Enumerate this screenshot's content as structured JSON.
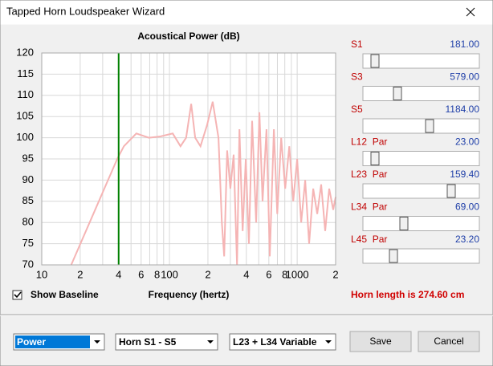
{
  "window": {
    "title": "Tapped Horn Loudspeaker Wizard"
  },
  "chart_data": {
    "type": "line",
    "title": "Acoustical Power (dB)",
    "x_label": "Frequency (hertz)",
    "x": [
      17,
      39,
      44,
      55,
      69,
      85,
      106,
      122,
      135,
      148,
      159,
      175,
      197,
      218,
      242,
      257,
      268,
      283,
      300,
      318,
      338,
      353,
      374,
      396,
      419,
      444,
      477,
      506,
      536,
      575,
      610,
      657,
      698,
      749,
      806,
      867,
      931,
      1000,
      1075,
      1156,
      1240,
      1335,
      1435,
      1542,
      1658,
      1780,
      1915,
      2000
    ],
    "series": [
      {
        "color": "#f5b4b4",
        "values": [
          70,
          95,
          98,
          101,
          100,
          100.3,
          101,
          98,
          100,
          108,
          100,
          98,
          103,
          108.5,
          100,
          80,
          72,
          97,
          88,
          96,
          70,
          102,
          78,
          95,
          75,
          104,
          80,
          106,
          85,
          102,
          72,
          102,
          82,
          100,
          88,
          98,
          85,
          95,
          80,
          90,
          75,
          88,
          82,
          89,
          78,
          88,
          83,
          86
        ]
      }
    ],
    "xscale": "log",
    "xlim": [
      10,
      2000
    ],
    "xticks": [
      {
        "value": 10,
        "label": "10"
      },
      {
        "value": 20,
        "label": "2"
      },
      {
        "value": 30,
        "label": null
      },
      {
        "value": 40,
        "label": "4"
      },
      {
        "value": 50,
        "label": null
      },
      {
        "value": 60,
        "label": "6"
      },
      {
        "value": 70,
        "label": null
      },
      {
        "value": 80,
        "label": "8"
      },
      {
        "value": 90,
        "label": null
      },
      {
        "value": 100,
        "label": "100"
      },
      {
        "value": 200,
        "label": "2"
      },
      {
        "value": 300,
        "label": null
      },
      {
        "value": 400,
        "label": "4"
      },
      {
        "value": 500,
        "label": null
      },
      {
        "value": 600,
        "label": "6"
      },
      {
        "value": 700,
        "label": null
      },
      {
        "value": 800,
        "label": "8"
      },
      {
        "value": 900,
        "label": null
      },
      {
        "value": 1000,
        "label": "1000"
      },
      {
        "value": 2000,
        "label": "2"
      }
    ],
    "ylim": [
      70,
      120
    ],
    "yticks": [
      70,
      75,
      80,
      85,
      90,
      95,
      100,
      105,
      110,
      115,
      120
    ],
    "grid": true,
    "vline": {
      "x": 40,
      "color": "#008000"
    }
  },
  "sliders": [
    {
      "label": "S1",
      "value": "181.00"
    },
    {
      "label": "S3",
      "value": "579.00"
    },
    {
      "label": "S5",
      "value": "1184.00"
    },
    {
      "label": "L12  Par",
      "value": "23.00"
    },
    {
      "label": "L23  Par",
      "value": "159.40"
    },
    {
      "label": "L34  Par",
      "value": "69.00"
    },
    {
      "label": "L45  Par",
      "value": "23.20"
    }
  ],
  "checkbox": {
    "label": "Show Baseline"
  },
  "status": "Horn length is 274.60 cm",
  "dropdowns": [
    "Power",
    "Horn S1 - S5",
    "L23 + L34 Variable"
  ],
  "buttons": [
    "Save",
    "Cancel"
  ]
}
